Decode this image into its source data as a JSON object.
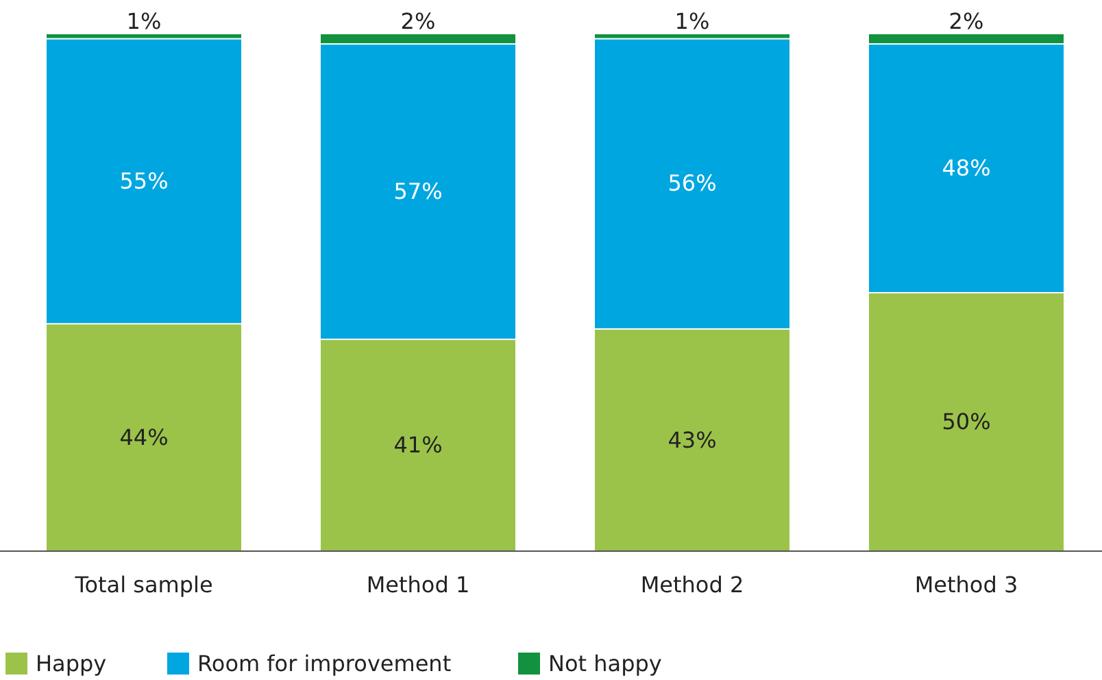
{
  "chart_data": {
    "type": "bar",
    "stacked": true,
    "data_labels": true,
    "legend": "bottom left",
    "categories": [
      "Total sample",
      "Method 1",
      "Method 2",
      "Method 3"
    ],
    "series": [
      {
        "name": "Happy",
        "color": "#9bc34a",
        "values": [
          44,
          41,
          43,
          50
        ],
        "value_labels": [
          "44%",
          "41%",
          "43%",
          "50%"
        ]
      },
      {
        "name": "Room for improvement",
        "color": "#00a6e0",
        "values": [
          55,
          57,
          56,
          48
        ],
        "value_labels": [
          "55%",
          "57%",
          "56%",
          "48%"
        ]
      },
      {
        "name": "Not happy",
        "color": "#12923e",
        "values": [
          1,
          2,
          1,
          2
        ],
        "value_labels": [
          "1%",
          "2%",
          "1%",
          "2%"
        ]
      }
    ]
  }
}
